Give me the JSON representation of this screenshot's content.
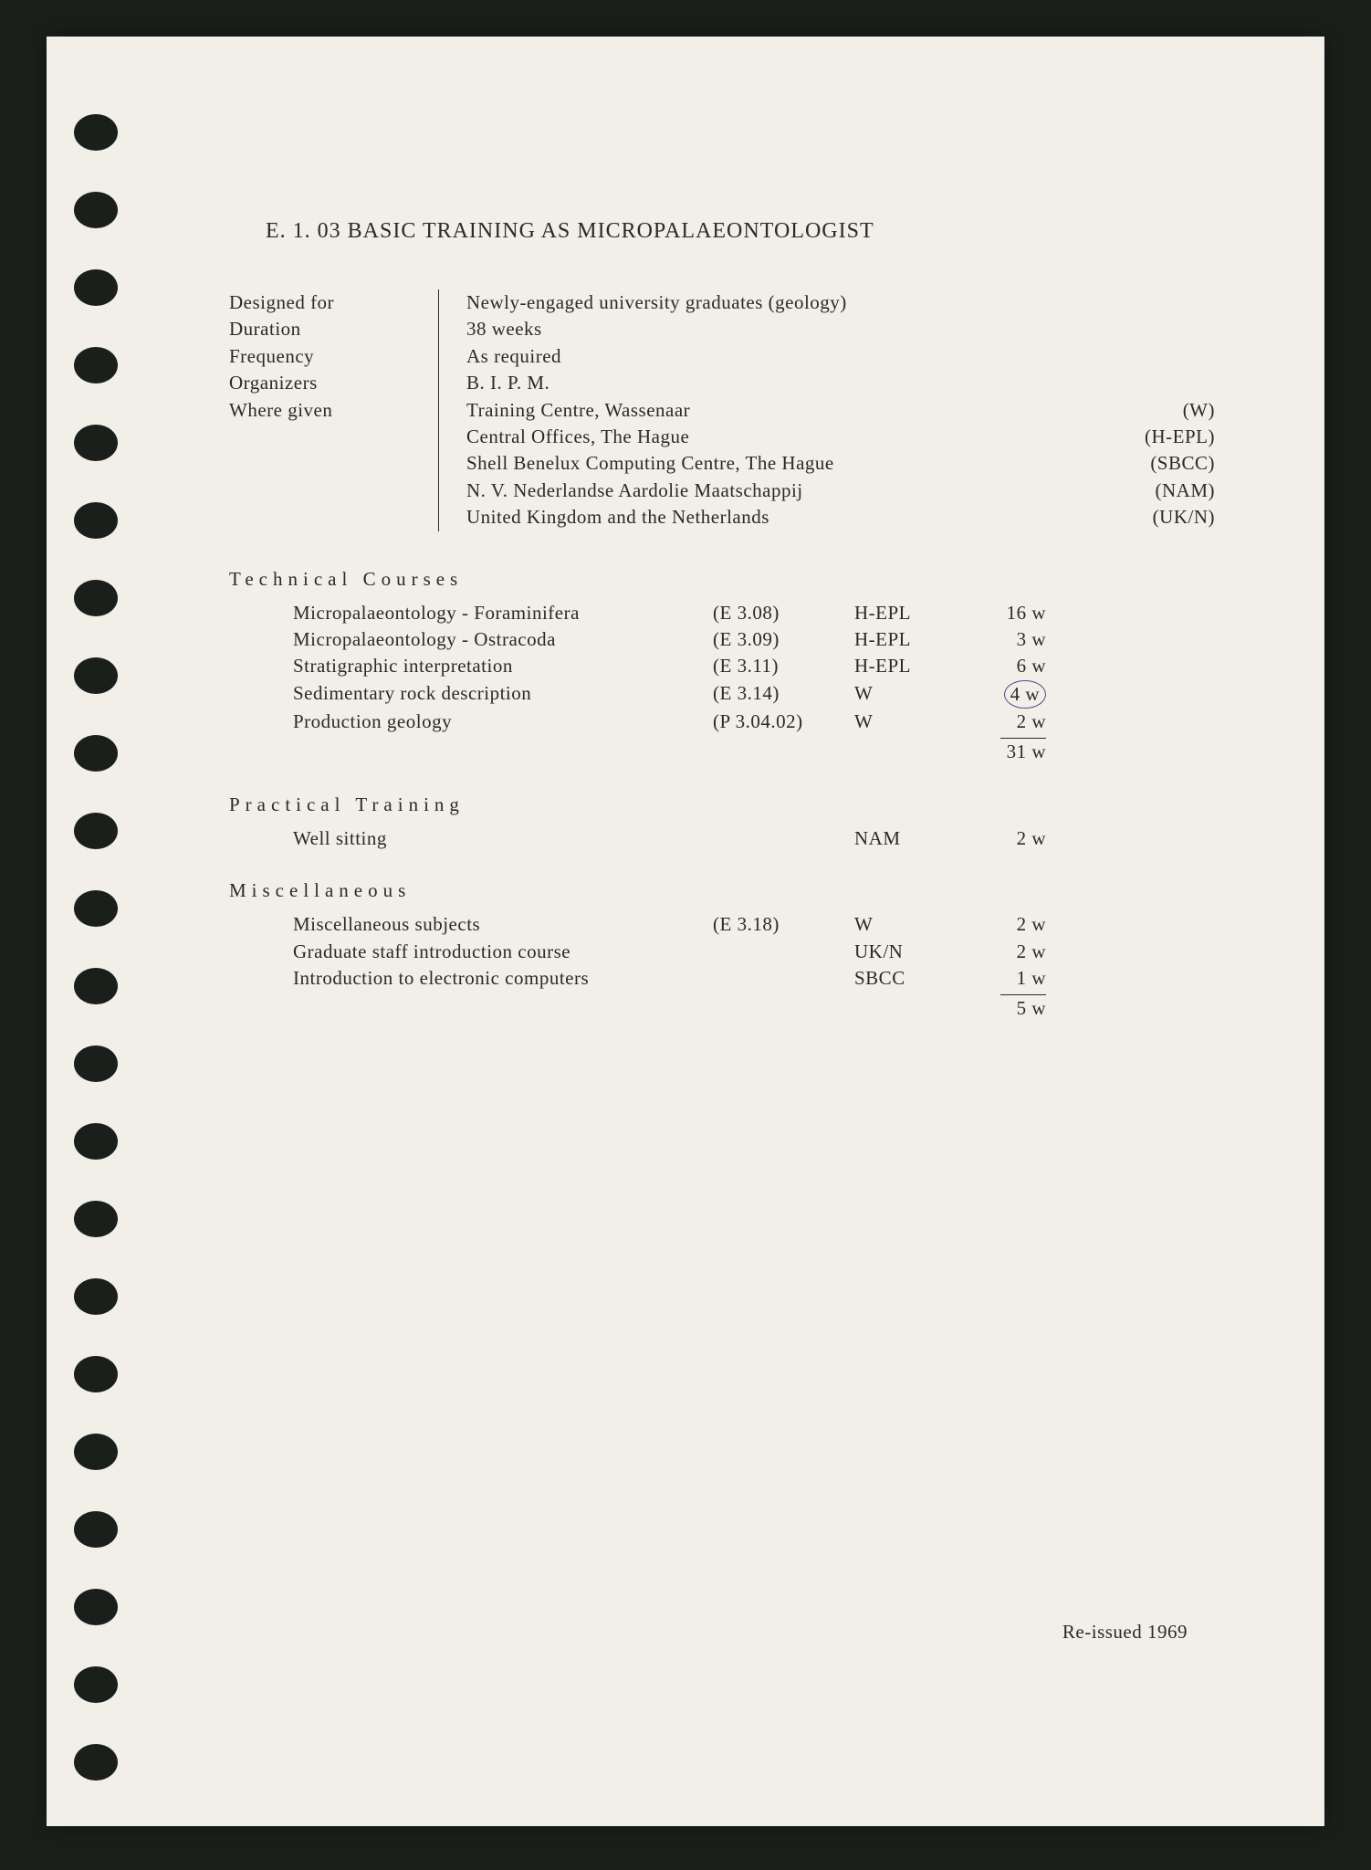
{
  "title": "E. 1. 03 BASIC TRAINING AS MICROPALAEONTOLOGIST",
  "header": {
    "labels": {
      "designed_for": "Designed for",
      "duration": "Duration",
      "frequency": "Frequency",
      "organizers": "Organizers",
      "where_given": "Where given"
    },
    "values": {
      "designed_for": "Newly-engaged university graduates (geology)",
      "duration": "38 weeks",
      "frequency": "As required",
      "organizers": "B. I. P. M."
    },
    "locations": [
      {
        "name": "Training Centre, Wassenaar",
        "code": "(W)"
      },
      {
        "name": "Central Offices, The Hague",
        "code": "(H-EPL)"
      },
      {
        "name": "Shell Benelux Computing Centre, The Hague",
        "code": "(SBCC)"
      },
      {
        "name": "N. V. Nederlandse Aardolie Maatschappij",
        "code": "(NAM)"
      },
      {
        "name": "United Kingdom and the Netherlands",
        "code": "(UK/N)"
      }
    ]
  },
  "sections": {
    "technical": {
      "title": "Technical Courses",
      "courses": [
        {
          "name": "Micropalaeontology - Foraminifera",
          "code": "(E 3.08)",
          "loc": "H-EPL",
          "dur": "16 w"
        },
        {
          "name": "Micropalaeontology - Ostracoda",
          "code": "(E 3.09)",
          "loc": "H-EPL",
          "dur": "3 w"
        },
        {
          "name": "Stratigraphic interpretation",
          "code": "(E 3.11)",
          "loc": "H-EPL",
          "dur": "6 w"
        },
        {
          "name": "Sedimentary rock description",
          "code": "(E 3.14)",
          "loc": "W",
          "dur": "4 w",
          "circled": true
        },
        {
          "name": "Production geology",
          "code": "(P 3.04.02)",
          "loc": "W",
          "dur": "2 w"
        }
      ],
      "subtotal": "31 w"
    },
    "practical": {
      "title": "Practical Training",
      "courses": [
        {
          "name": "Well sitting",
          "code": "",
          "loc": "NAM",
          "dur": "2 w"
        }
      ]
    },
    "misc": {
      "title": "Miscellaneous",
      "courses": [
        {
          "name": "Miscellaneous subjects",
          "code": "(E 3.18)",
          "loc": "W",
          "dur": "2 w"
        },
        {
          "name": "Graduate staff introduction course",
          "code": "",
          "loc": "UK/N",
          "dur": "2 w"
        },
        {
          "name": "Introduction to electronic computers",
          "code": "",
          "loc": "SBCC",
          "dur": "1 w"
        }
      ],
      "subtotal": "5 w"
    }
  },
  "footer": "Re-issued 1969",
  "styling": {
    "page_bg": "#f2efe8",
    "frame_bg": "#1a1f1c",
    "text_color": "#2a2a2a",
    "circle_color": "#524993",
    "hole_count": 23,
    "body_fontsize": 21,
    "title_fontsize": 24
  }
}
